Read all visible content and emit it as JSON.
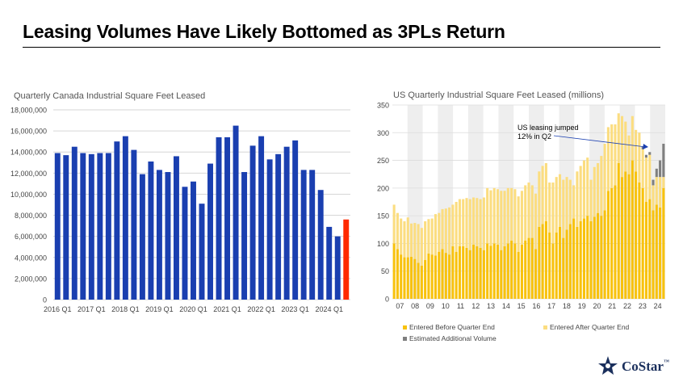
{
  "page": {
    "title": "Leasing Volumes Have Likely Bottomed as 3PLs Return",
    "logo_text": "CoStar",
    "logo_tm": "™"
  },
  "colors": {
    "canada_bar": "#1a3fb0",
    "canada_last_bar": "#ff2a00",
    "us_entered_before": "#f8c20d",
    "us_entered_after": "#fbdd80",
    "us_estimated_additional": "#7f7f7f",
    "year_shade": "#eeeeee",
    "logo": "#1a2f5c"
  },
  "chart_data": [
    {
      "type": "bar",
      "title": "Quarterly Canada Industrial Square Feet Leased",
      "categories": [
        "2016 Q1",
        "2016 Q2",
        "2016 Q3",
        "2016 Q4",
        "2017 Q1",
        "2017 Q2",
        "2017 Q3",
        "2017 Q4",
        "2018 Q1",
        "2018 Q2",
        "2018 Q3",
        "2018 Q4",
        "2019 Q1",
        "2019 Q2",
        "2019 Q3",
        "2019 Q4",
        "2020 Q1",
        "2020 Q2",
        "2020 Q3",
        "2020 Q4",
        "2021 Q1",
        "2021 Q2",
        "2021 Q3",
        "2021 Q4",
        "2022 Q1",
        "2022 Q2",
        "2022 Q3",
        "2022 Q4",
        "2023 Q1",
        "2023 Q2",
        "2023 Q3",
        "2023 Q4",
        "2024 Q1",
        "2024 Q2",
        "2024 Q3"
      ],
      "x_tick_labels": [
        "2016 Q1",
        "2017 Q1",
        "2018 Q1",
        "2019 Q1",
        "2020 Q1",
        "2021 Q1",
        "2022 Q1",
        "2023 Q1",
        "2024 Q1"
      ],
      "values": [
        13900000,
        13700000,
        14500000,
        13900000,
        13800000,
        13900000,
        13900000,
        15000000,
        15500000,
        14200000,
        11900000,
        13100000,
        12300000,
        12100000,
        13600000,
        10700000,
        11200000,
        9100000,
        12900000,
        15400000,
        15400000,
        16500000,
        12100000,
        14600000,
        15500000,
        13300000,
        13800000,
        14500000,
        15100000,
        12300000,
        12300000,
        10400000,
        6900000,
        6000000,
        7600000
      ],
      "highlight_last": true,
      "y_ticks": [
        "0",
        "2,000,000",
        "4,000,000",
        "6,000,000",
        "8,000,000",
        "10,000,000",
        "12,000,000",
        "14,000,000",
        "16,000,000",
        "18,000,000"
      ],
      "ylim": [
        0,
        18000000
      ],
      "grid": true
    },
    {
      "type": "bar",
      "stacked": true,
      "title": "US Quarterly Industrial Square Feet Leased (millions)",
      "x_tick_labels": [
        "07",
        "08",
        "09",
        "10",
        "11",
        "12",
        "13",
        "14",
        "15",
        "16",
        "17",
        "18",
        "19",
        "20",
        "21",
        "22",
        "23",
        "24"
      ],
      "y_ticks": [
        "0",
        "50",
        "100",
        "150",
        "200",
        "250",
        "300",
        "350"
      ],
      "ylim": [
        0,
        350
      ],
      "shaded_years": [
        "08",
        "10",
        "12",
        "14",
        "16",
        "18",
        "20",
        "22",
        "24"
      ],
      "series": [
        {
          "name": "Entered Before Quarter End",
          "values": [
            100,
            90,
            80,
            75,
            75,
            76,
            72,
            65,
            60,
            70,
            82,
            80,
            78,
            85,
            90,
            83,
            80,
            95,
            85,
            95,
            95,
            92,
            88,
            98,
            95,
            92,
            88,
            100,
            96,
            100,
            98,
            88,
            95,
            100,
            105,
            100,
            85,
            98,
            105,
            110,
            110,
            90,
            130,
            135,
            140,
            120,
            100,
            120,
            130,
            110,
            125,
            135,
            145,
            130,
            140,
            145,
            150,
            140,
            148,
            155,
            150,
            160,
            195,
            200,
            205,
            245,
            220,
            230,
            225,
            250,
            230,
            210,
            200,
            175,
            180,
            160,
            170,
            165,
            200
          ]
        },
        {
          "name": "Entered After Quarter End",
          "values": [
            70,
            65,
            65,
            65,
            72,
            60,
            65,
            70,
            68,
            70,
            62,
            65,
            75,
            70,
            72,
            80,
            85,
            75,
            90,
            85,
            85,
            90,
            92,
            85,
            87,
            88,
            95,
            100,
            100,
            100,
            100,
            107,
            100,
            100,
            95,
            98,
            100,
            97,
            100,
            100,
            95,
            100,
            100,
            105,
            105,
            90,
            110,
            100,
            95,
            105,
            95,
            80,
            60,
            100,
            100,
            105,
            105,
            75,
            90,
            90,
            108,
            120,
            115,
            115,
            110,
            90,
            110,
            90,
            70,
            80,
            75,
            90,
            70,
            80,
            80,
            45,
            50,
            55,
            20
          ]
        },
        {
          "name": "Estimated Additional Volume",
          "values": [
            0,
            0,
            0,
            0,
            0,
            0,
            0,
            0,
            0,
            0,
            0,
            0,
            0,
            0,
            0,
            0,
            0,
            0,
            0,
            0,
            0,
            0,
            0,
            0,
            0,
            0,
            0,
            0,
            0,
            0,
            0,
            0,
            0,
            0,
            0,
            0,
            0,
            0,
            0,
            0,
            0,
            0,
            0,
            0,
            0,
            0,
            0,
            0,
            0,
            0,
            0,
            0,
            0,
            0,
            0,
            0,
            0,
            0,
            0,
            0,
            0,
            0,
            0,
            0,
            0,
            0,
            0,
            0,
            0,
            0,
            0,
            0,
            5,
            5,
            5,
            10,
            15,
            30,
            60
          ]
        }
      ],
      "annotation": {
        "text_line1": "US leasing jumped",
        "text_line2": "12% in Q2"
      },
      "legend": "bottom",
      "grid": true
    }
  ]
}
